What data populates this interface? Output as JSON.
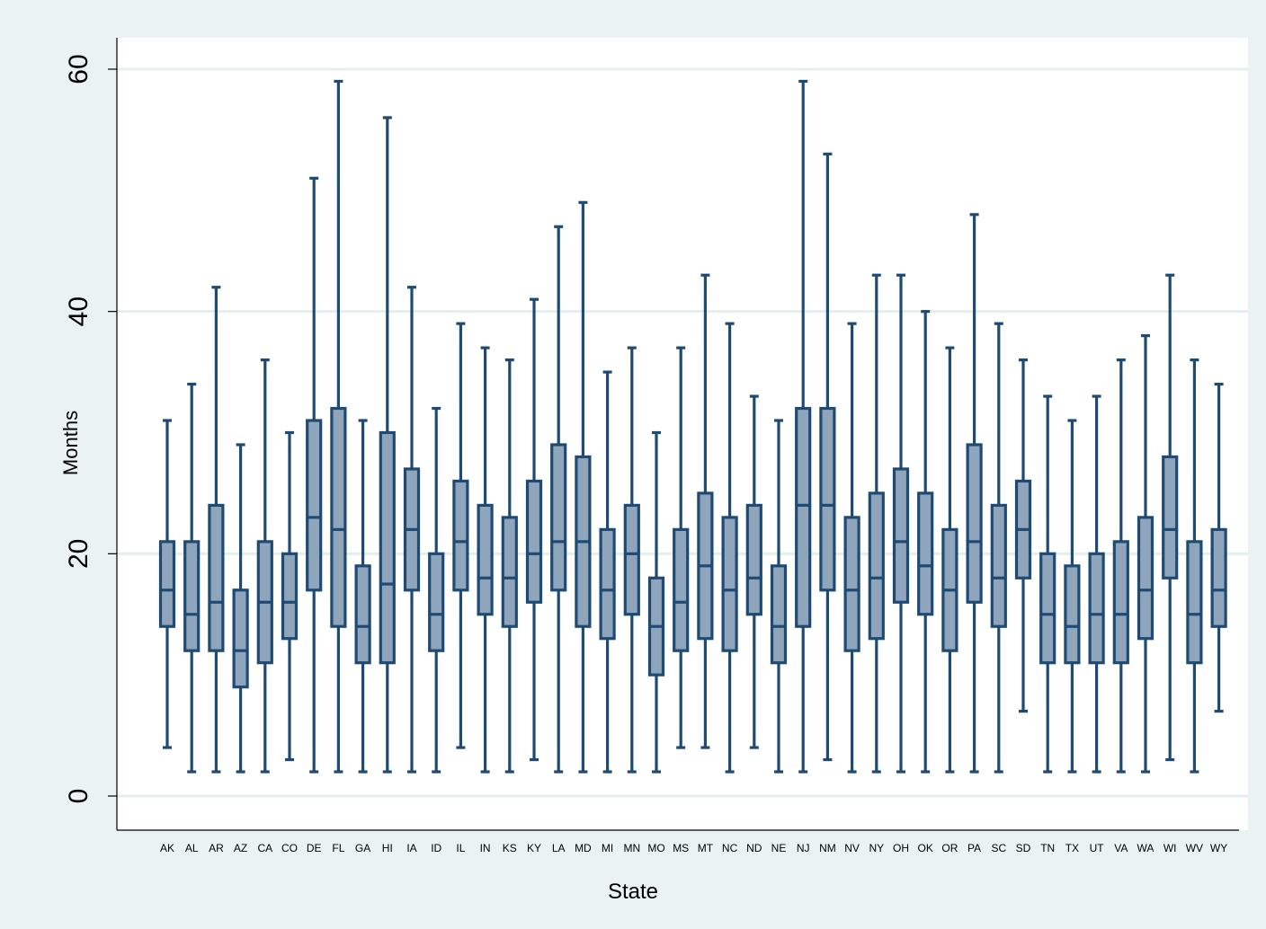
{
  "chart_data": {
    "type": "box",
    "xlabel": "State",
    "ylabel": "Months",
    "ylim": [
      0,
      60
    ],
    "yticks": [
      0,
      20,
      40,
      60
    ],
    "grid": true,
    "colors": {
      "box_fill": "#8fa5bb",
      "box_stroke": "#1f4a73",
      "plot_bg": "#ffffff",
      "outer_bg": "#eaf2f3",
      "grid": "#e4eeee"
    },
    "categories": [
      "AK",
      "AL",
      "AR",
      "AZ",
      "CA",
      "CO",
      "DE",
      "FL",
      "GA",
      "HI",
      "IA",
      "ID",
      "IL",
      "IN",
      "KS",
      "KY",
      "LA",
      "MD",
      "MI",
      "MN",
      "MO",
      "MS",
      "MT",
      "NC",
      "ND",
      "NE",
      "NJ",
      "NM",
      "NV",
      "NY",
      "OH",
      "OK",
      "OR",
      "PA",
      "SC",
      "SD",
      "TN",
      "TX",
      "UT",
      "VA",
      "WA",
      "WI",
      "WV",
      "WY"
    ],
    "boxes": [
      {
        "state": "AK",
        "min": 4,
        "q1": 14,
        "median": 17,
        "q3": 21,
        "max": 31
      },
      {
        "state": "AL",
        "min": 2,
        "q1": 12,
        "median": 15,
        "q3": 21,
        "max": 34
      },
      {
        "state": "AR",
        "min": 2,
        "q1": 12,
        "median": 16,
        "q3": 24,
        "max": 42
      },
      {
        "state": "AZ",
        "min": 2,
        "q1": 9,
        "median": 12,
        "q3": 17,
        "max": 29
      },
      {
        "state": "CA",
        "min": 2,
        "q1": 11,
        "median": 16,
        "q3": 21,
        "max": 36
      },
      {
        "state": "CO",
        "min": 3,
        "q1": 13,
        "median": 16,
        "q3": 20,
        "max": 30
      },
      {
        "state": "DE",
        "min": 2,
        "q1": 17,
        "median": 23,
        "q3": 31,
        "max": 51
      },
      {
        "state": "FL",
        "min": 2,
        "q1": 14,
        "median": 22,
        "q3": 32,
        "max": 59
      },
      {
        "state": "GA",
        "min": 2,
        "q1": 11,
        "median": 14,
        "q3": 19,
        "max": 31
      },
      {
        "state": "HI",
        "min": 2,
        "q1": 11,
        "median": 17.5,
        "q3": 30,
        "max": 56
      },
      {
        "state": "IA",
        "min": 2,
        "q1": 17,
        "median": 22,
        "q3": 27,
        "max": 42
      },
      {
        "state": "ID",
        "min": 2,
        "q1": 12,
        "median": 15,
        "q3": 20,
        "max": 32
      },
      {
        "state": "IL",
        "min": 4,
        "q1": 17,
        "median": 21,
        "q3": 26,
        "max": 39
      },
      {
        "state": "IN",
        "min": 2,
        "q1": 15,
        "median": 18,
        "q3": 24,
        "max": 37
      },
      {
        "state": "KS",
        "min": 2,
        "q1": 14,
        "median": 18,
        "q3": 23,
        "max": 36
      },
      {
        "state": "KY",
        "min": 3,
        "q1": 16,
        "median": 20,
        "q3": 26,
        "max": 41
      },
      {
        "state": "LA",
        "min": 2,
        "q1": 17,
        "median": 21,
        "q3": 29,
        "max": 47
      },
      {
        "state": "MD",
        "min": 2,
        "q1": 14,
        "median": 21,
        "q3": 28,
        "max": 49
      },
      {
        "state": "MI",
        "min": 2,
        "q1": 13,
        "median": 17,
        "q3": 22,
        "max": 35
      },
      {
        "state": "MN",
        "min": 2,
        "q1": 15,
        "median": 20,
        "q3": 24,
        "max": 37
      },
      {
        "state": "MO",
        "min": 2,
        "q1": 10,
        "median": 14,
        "q3": 18,
        "max": 30
      },
      {
        "state": "MS",
        "min": 4,
        "q1": 12,
        "median": 16,
        "q3": 22,
        "max": 37
      },
      {
        "state": "MT",
        "min": 4,
        "q1": 13,
        "median": 19,
        "q3": 25,
        "max": 43
      },
      {
        "state": "NC",
        "min": 2,
        "q1": 12,
        "median": 17,
        "q3": 23,
        "max": 39
      },
      {
        "state": "ND",
        "min": 4,
        "q1": 15,
        "median": 18,
        "q3": 24,
        "max": 33
      },
      {
        "state": "NE",
        "min": 2,
        "q1": 11,
        "median": 14,
        "q3": 19,
        "max": 31
      },
      {
        "state": "NJ",
        "min": 2,
        "q1": 14,
        "median": 24,
        "q3": 32,
        "max": 59
      },
      {
        "state": "NM",
        "min": 3,
        "q1": 17,
        "median": 24,
        "q3": 32,
        "max": 53
      },
      {
        "state": "NV",
        "min": 2,
        "q1": 12,
        "median": 17,
        "q3": 23,
        "max": 39
      },
      {
        "state": "NY",
        "min": 2,
        "q1": 13,
        "median": 18,
        "q3": 25,
        "max": 43
      },
      {
        "state": "OH",
        "min": 2,
        "q1": 16,
        "median": 21,
        "q3": 27,
        "max": 43
      },
      {
        "state": "OK",
        "min": 2,
        "q1": 15,
        "median": 19,
        "q3": 25,
        "max": 40
      },
      {
        "state": "OR",
        "min": 2,
        "q1": 12,
        "median": 17,
        "q3": 22,
        "max": 37
      },
      {
        "state": "PA",
        "min": 2,
        "q1": 16,
        "median": 21,
        "q3": 29,
        "max": 48
      },
      {
        "state": "SC",
        "min": 2,
        "q1": 14,
        "median": 18,
        "q3": 24,
        "max": 39
      },
      {
        "state": "SD",
        "min": 7,
        "q1": 18,
        "median": 22,
        "q3": 26,
        "max": 36
      },
      {
        "state": "TN",
        "min": 2,
        "q1": 11,
        "median": 15,
        "q3": 20,
        "max": 33
      },
      {
        "state": "TX",
        "min": 2,
        "q1": 11,
        "median": 14,
        "q3": 19,
        "max": 31
      },
      {
        "state": "UT",
        "min": 2,
        "q1": 11,
        "median": 15,
        "q3": 20,
        "max": 33
      },
      {
        "state": "VA",
        "min": 2,
        "q1": 11,
        "median": 15,
        "q3": 21,
        "max": 36
      },
      {
        "state": "WA",
        "min": 2,
        "q1": 13,
        "median": 17,
        "q3": 23,
        "max": 38
      },
      {
        "state": "WI",
        "min": 3,
        "q1": 18,
        "median": 22,
        "q3": 28,
        "max": 43
      },
      {
        "state": "WV",
        "min": 2,
        "q1": 11,
        "median": 15,
        "q3": 21,
        "max": 36
      },
      {
        "state": "WY",
        "min": 7,
        "q1": 14,
        "median": 17,
        "q3": 22,
        "max": 34
      }
    ]
  }
}
